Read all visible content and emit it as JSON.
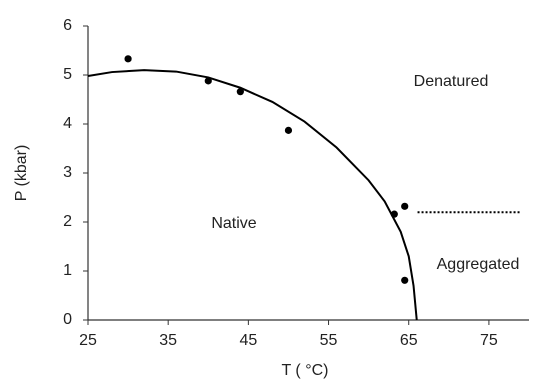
{
  "chart_data": {
    "type": "scatter",
    "x_label": "T ( °C)",
    "y_label": "P (kbar)",
    "xlim": [
      25,
      80
    ],
    "ylim": [
      0,
      6
    ],
    "xticks": [
      25,
      35,
      45,
      55,
      65,
      75
    ],
    "yticks": [
      0,
      1,
      2,
      3,
      4,
      5,
      6
    ],
    "grid": false,
    "series": [
      {
        "type": "scatter",
        "color": "#000000",
        "x": [
          30,
          40,
          44,
          50,
          63.2,
          64.5,
          64.5
        ],
        "values": [
          5.33,
          4.88,
          4.66,
          3.87,
          2.16,
          2.32,
          0.81
        ]
      },
      {
        "type": "line",
        "color": "#000000",
        "style": "solid",
        "x": [
          25,
          28,
          32,
          36,
          40,
          44,
          48,
          52,
          56,
          60,
          62,
          64,
          65,
          65.6,
          66
        ],
        "values": [
          4.98,
          5.06,
          5.1,
          5.07,
          4.95,
          4.74,
          4.45,
          4.05,
          3.52,
          2.85,
          2.42,
          1.8,
          1.3,
          0.7,
          0
        ]
      },
      {
        "type": "line",
        "color": "#000000",
        "style": "dotted",
        "x": [
          66.1,
          78.9
        ],
        "values": [
          2.2,
          2.2
        ]
      }
    ],
    "annotations": [
      "Denatured",
      "Native",
      "Aggregated"
    ]
  }
}
